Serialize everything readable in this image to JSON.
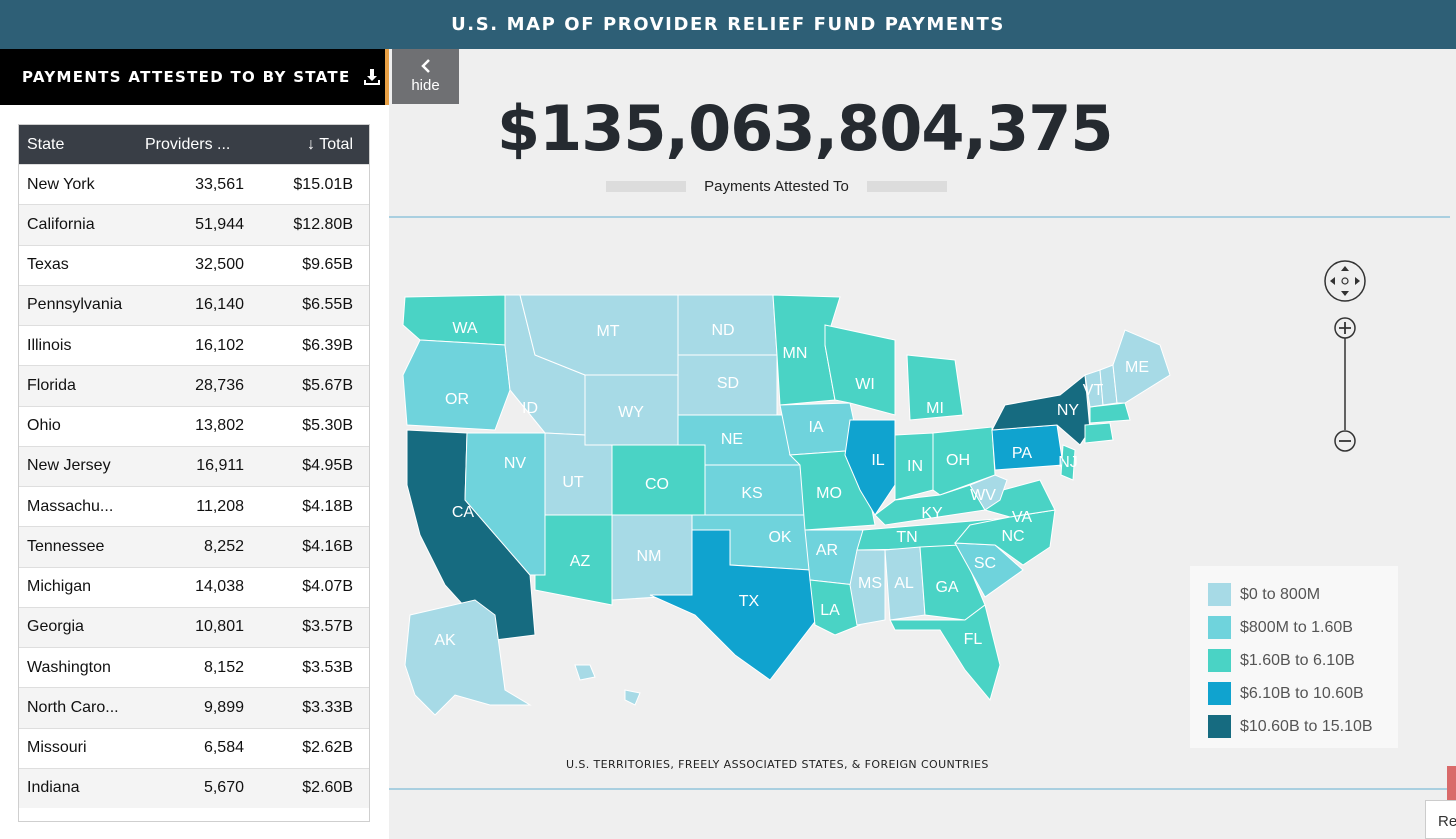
{
  "header": {
    "title": "U.S. MAP OF PROVIDER RELIEF FUND PAYMENTS"
  },
  "sidebar": {
    "panel_title": "PAYMENTS ATTESTED TO BY STATE",
    "download_icon": "download-icon",
    "hide_label": "hide",
    "columns": {
      "state": "State",
      "providers": "Providers ...",
      "total": "Total",
      "sort_icon": "arrow-down-icon"
    },
    "rows": [
      {
        "state": "New York",
        "providers": "33,561",
        "total": "$15.01B"
      },
      {
        "state": "California",
        "providers": "51,944",
        "total": "$12.80B"
      },
      {
        "state": "Texas",
        "providers": "32,500",
        "total": "$9.65B"
      },
      {
        "state": "Pennsylvania",
        "providers": "16,140",
        "total": "$6.55B"
      },
      {
        "state": "Illinois",
        "providers": "16,102",
        "total": "$6.39B"
      },
      {
        "state": "Florida",
        "providers": "28,736",
        "total": "$5.67B"
      },
      {
        "state": "Ohio",
        "providers": "13,802",
        "total": "$5.30B"
      },
      {
        "state": "New Jersey",
        "providers": "16,911",
        "total": "$4.95B"
      },
      {
        "state": "Massachu...",
        "providers": "11,208",
        "total": "$4.18B"
      },
      {
        "state": "Tennessee",
        "providers": "8,252",
        "total": "$4.16B"
      },
      {
        "state": "Michigan",
        "providers": "14,038",
        "total": "$4.07B"
      },
      {
        "state": "Georgia",
        "providers": "10,801",
        "total": "$3.57B"
      },
      {
        "state": "Washington",
        "providers": "8,152",
        "total": "$3.53B"
      },
      {
        "state": "North Caro...",
        "providers": "9,899",
        "total": "$3.33B"
      },
      {
        "state": "Missouri",
        "providers": "6,584",
        "total": "$2.62B"
      },
      {
        "state": "Indiana",
        "providers": "5,670",
        "total": "$2.60B"
      }
    ]
  },
  "summary": {
    "total": "$135,063,804,375",
    "label": "Payments Attested To"
  },
  "map": {
    "footer_label": "U.S. TERRITORIES, FREELY ASSOCIATED STATES, & FOREIGN COUNTRIES",
    "state_labels": [
      "WA",
      "OR",
      "CA",
      "NV",
      "ID",
      "MT",
      "WY",
      "UT",
      "AZ",
      "CO",
      "NM",
      "ND",
      "SD",
      "NE",
      "KS",
      "OK",
      "TX",
      "MN",
      "IA",
      "MO",
      "AR",
      "LA",
      "WI",
      "IL",
      "MI",
      "IN",
      "OH",
      "KY",
      "TN",
      "MS",
      "AL",
      "GA",
      "FL",
      "SC",
      "NC",
      "VA",
      "WV",
      "PA",
      "NY",
      "NJ",
      "VT",
      "ME",
      "AK"
    ],
    "colors": {
      "tier1": "#a7dae6",
      "tier2": "#6fd3dc",
      "tier3": "#4ad3c5",
      "tier4": "#10a3cf",
      "tier5": "#166b80"
    },
    "zoom": {
      "pan_icon": "pan-icon",
      "zoom_in_icon": "plus-icon",
      "zoom_out_icon": "minus-icon"
    }
  },
  "legend": {
    "items": [
      {
        "label": "$0 to 800M",
        "color": "#a7dae6"
      },
      {
        "label": "$800M to 1.60B",
        "color": "#6fd3dc"
      },
      {
        "label": "$1.60B to 6.10B",
        "color": "#4ad3c5"
      },
      {
        "label": "$6.10B to 10.60B",
        "color": "#10a3cf"
      },
      {
        "label": "$10.60B to 15.10B",
        "color": "#166b80"
      }
    ]
  },
  "corner": {
    "partial_text": "Re"
  }
}
